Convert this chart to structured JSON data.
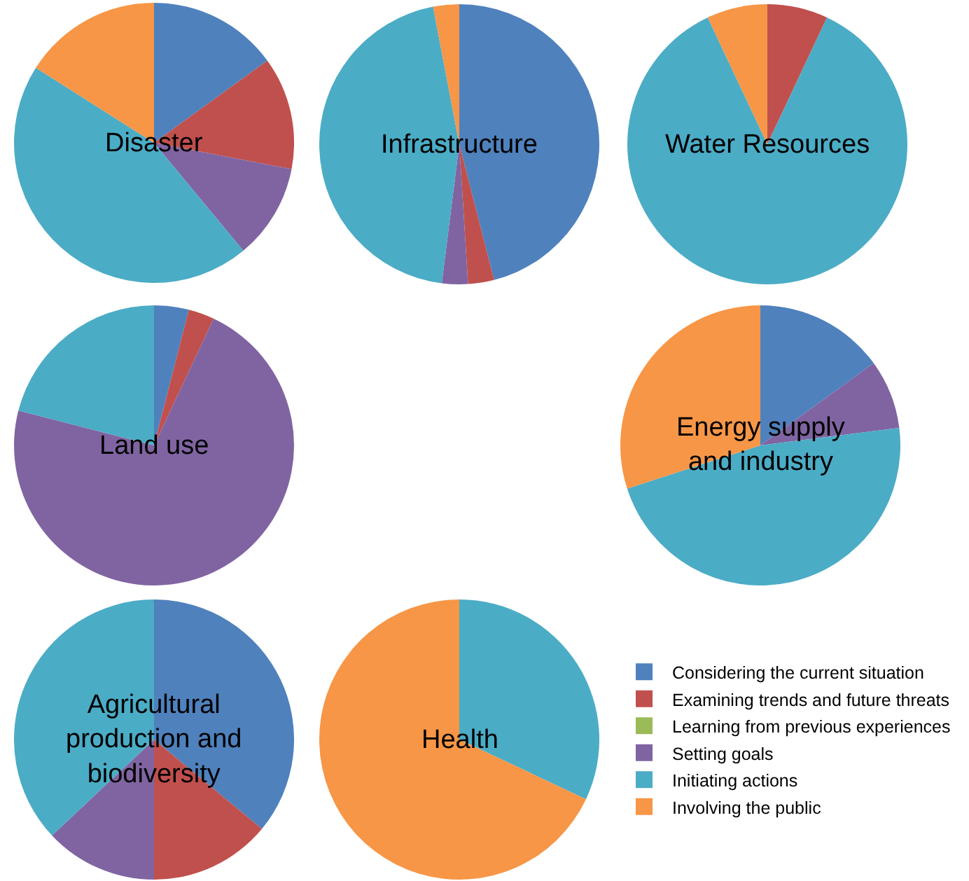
{
  "chart_data": [
    {
      "type": "pie",
      "title": "Disaster",
      "categories": [
        null,
        null,
        null,
        null,
        null,
        null
      ],
      "values": [
        15,
        13,
        0,
        11,
        45,
        16
      ],
      "colors": [
        "#4f81bd",
        "#c0504d",
        "#9bbb59",
        "#8064a2",
        "#4bacc6",
        "#f79646"
      ]
    },
    {
      "type": "pie",
      "title": "Infrastructure",
      "categories": [
        null,
        null,
        null,
        null,
        null,
        null
      ],
      "values": [
        46,
        3,
        0,
        3,
        45,
        3
      ],
      "colors": [
        "#4f81bd",
        "#c0504d",
        "#9bbb59",
        "#8064a2",
        "#4bacc6",
        "#f79646"
      ]
    },
    {
      "type": "pie",
      "title": "Water Resources",
      "categories": [
        null,
        null,
        null,
        null,
        null,
        null
      ],
      "values": [
        0,
        7,
        0,
        0,
        86,
        7
      ],
      "colors": [
        "#4f81bd",
        "#c0504d",
        "#9bbb59",
        "#8064a2",
        "#4bacc6",
        "#f79646"
      ]
    },
    {
      "type": "pie",
      "title": "Land use",
      "categories": [
        null,
        null,
        null,
        null,
        null,
        null
      ],
      "values": [
        4,
        3,
        0,
        72,
        21,
        0
      ],
      "colors": [
        "#4f81bd",
        "#c0504d",
        "#9bbb59",
        "#8064a2",
        "#4bacc6",
        "#f79646"
      ]
    },
    {
      "type": "pie",
      "title": "Energy supply\nand industry",
      "categories": [
        null,
        null,
        null,
        null,
        null,
        null
      ],
      "values": [
        15,
        0,
        0,
        8,
        47,
        30
      ],
      "colors": [
        "#4f81bd",
        "#c0504d",
        "#9bbb59",
        "#8064a2",
        "#4bacc6",
        "#f79646"
      ]
    },
    {
      "type": "pie",
      "title": "Agricultural\nproduction and\nbiodiversity",
      "categories": [
        null,
        null,
        null,
        null,
        null,
        null
      ],
      "values": [
        36,
        14,
        0,
        13,
        37,
        0
      ],
      "colors": [
        "#4f81bd",
        "#c0504d",
        "#9bbb59",
        "#8064a2",
        "#4bacc6",
        "#f79646"
      ]
    },
    {
      "type": "pie",
      "title": "Health",
      "categories": [
        "Considering the current situation",
        "Examining trends and future threats",
        "Learning from previous experiences",
        "Setting goals",
        "Initiating actions",
        "Involving the public"
      ],
      "values": [
        0,
        0,
        0,
        0,
        32,
        68
      ],
      "colors": [
        "#4f81bd",
        "#c0504d",
        "#9bbb59",
        "#8064a2",
        "#4bacc6",
        "#f79646"
      ],
      "legend": "right"
    }
  ]
}
